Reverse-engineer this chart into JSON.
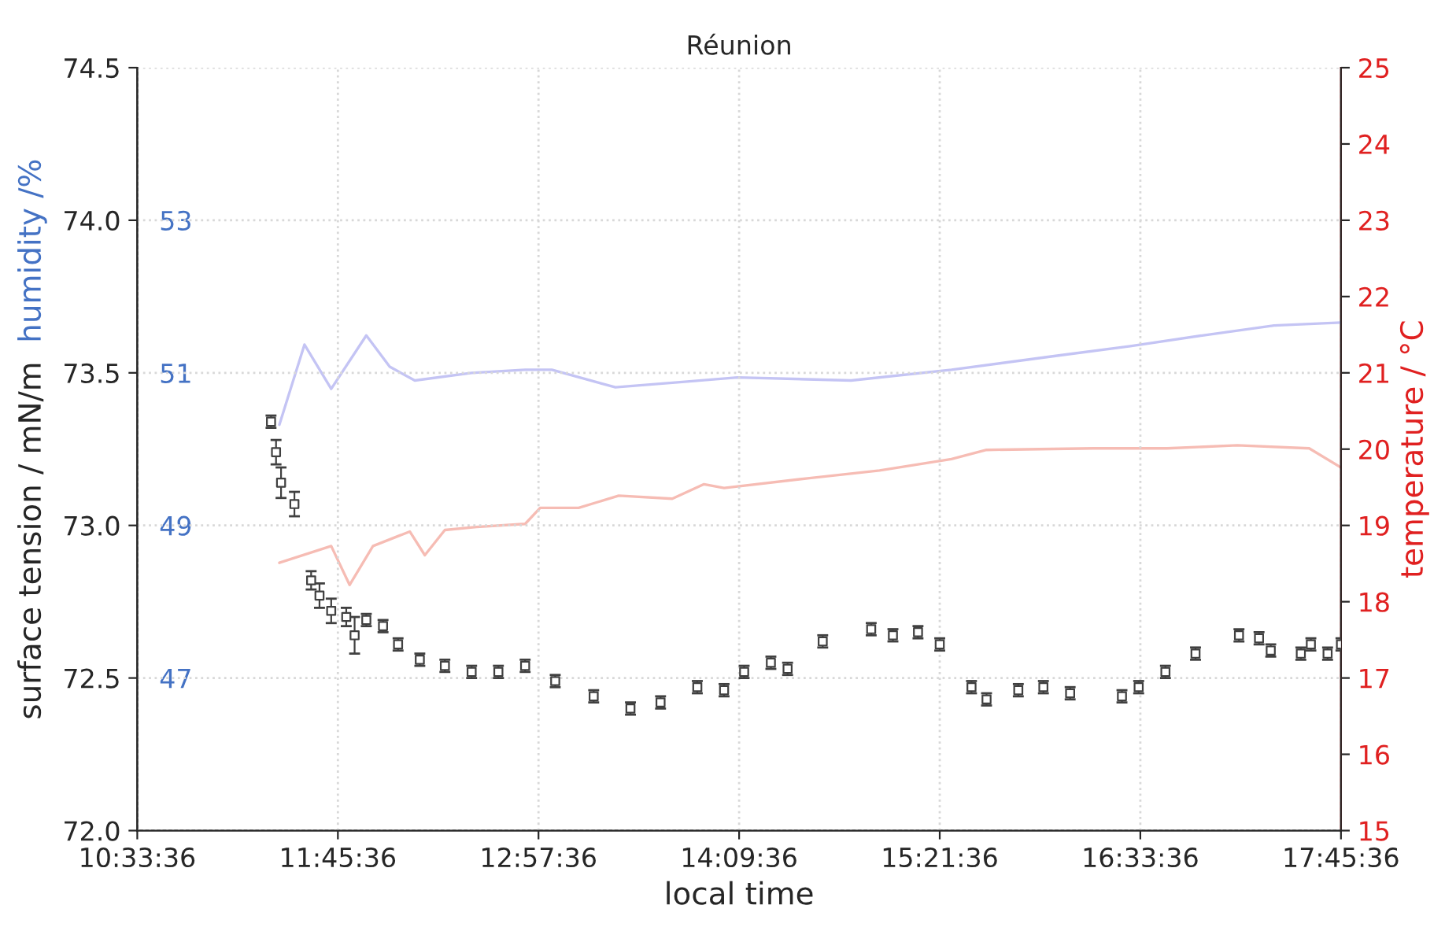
{
  "chart_data": {
    "type": "scatter",
    "title": "Réunion",
    "xlabel": "local time",
    "ylabel": "surface tension / mN/m",
    "y2label": "temperature / °C",
    "y3label": "humidity /%",
    "xlim": [
      10.56,
      17.76
    ],
    "xticks": [
      {
        "value": 10.56,
        "label": "10:33:36"
      },
      {
        "value": 11.76,
        "label": "11:45:36"
      },
      {
        "value": 12.96,
        "label": "12:57:36"
      },
      {
        "value": 14.16,
        "label": "14:09:36"
      },
      {
        "value": 15.36,
        "label": "15:21:36"
      },
      {
        "value": 16.56,
        "label": "16:33:36"
      },
      {
        "value": 17.76,
        "label": "17:45:36"
      }
    ],
    "ylim": [
      72.0,
      74.5
    ],
    "yticks": [
      {
        "value": 72.0,
        "label": "72.0"
      },
      {
        "value": 72.5,
        "label": "72.5"
      },
      {
        "value": 73.0,
        "label": "73.0"
      },
      {
        "value": 73.5,
        "label": "73.5"
      },
      {
        "value": 74.0,
        "label": "74.0"
      },
      {
        "value": 74.5,
        "label": "74.5"
      }
    ],
    "y2lim": [
      15,
      25
    ],
    "y2ticks": [
      15,
      16,
      17,
      18,
      19,
      20,
      21,
      22,
      23,
      24,
      25
    ],
    "y3lim": [
      45,
      55
    ],
    "y3ticks": [
      47,
      49,
      51,
      53
    ],
    "grid": true,
    "legend": false,
    "series": [
      {
        "type": "line",
        "axis": "y3",
        "color": "#c4c4f4",
        "x": [
          11.41,
          11.56,
          11.72,
          11.93,
          12.07,
          12.22,
          12.56,
          12.88,
          13.04,
          13.42,
          13.82,
          14.15,
          14.83,
          15.43,
          16.08,
          16.5,
          16.93,
          17.36,
          17.76
        ],
        "values": [
          50.32,
          51.37,
          50.79,
          51.49,
          51.08,
          50.9,
          51.0,
          51.04,
          51.04,
          50.81,
          50.88,
          50.94,
          50.9,
          51.04,
          51.23,
          51.35,
          51.49,
          51.62,
          51.66
        ]
      },
      {
        "type": "line",
        "axis": "y2",
        "color": "#f6bcb4",
        "x": [
          11.41,
          11.72,
          11.83,
          11.97,
          12.19,
          12.28,
          12.4,
          12.59,
          12.88,
          12.97,
          13.2,
          13.44,
          13.76,
          13.95,
          14.07,
          14.58,
          15.0,
          15.43,
          15.64,
          16.28,
          16.72,
          17.14,
          17.57,
          17.76
        ],
        "values": [
          18.51,
          18.73,
          18.22,
          18.73,
          18.92,
          18.61,
          18.94,
          18.98,
          19.02,
          19.23,
          19.23,
          19.39,
          19.35,
          19.54,
          19.49,
          19.62,
          19.72,
          19.87,
          19.99,
          20.01,
          20.01,
          20.05,
          20.01,
          19.76
        ]
      },
      {
        "marker": "square",
        "color": "#404040",
        "x": [
          11.36,
          11.39,
          11.42,
          11.5,
          11.6,
          11.65,
          11.72,
          11.81,
          11.86,
          11.93,
          12.03,
          12.12,
          12.25,
          12.4,
          12.56,
          12.72,
          12.88,
          13.06,
          13.29,
          13.51,
          13.69,
          13.91,
          14.07,
          14.19,
          14.35,
          14.45,
          14.66,
          14.95,
          15.08,
          15.23,
          15.36,
          15.55,
          15.64,
          15.83,
          15.98,
          16.14,
          16.45,
          16.55,
          16.71,
          16.89,
          17.15,
          17.27,
          17.34,
          17.52,
          17.58,
          17.68,
          17.76
        ],
        "values": [
          73.34,
          73.24,
          73.14,
          73.07,
          72.82,
          72.77,
          72.72,
          72.7,
          72.64,
          72.69,
          72.67,
          72.61,
          72.56,
          72.54,
          72.52,
          72.52,
          72.54,
          72.49,
          72.44,
          72.4,
          72.42,
          72.47,
          72.46,
          72.52,
          72.55,
          72.53,
          72.62,
          72.66,
          72.64,
          72.65,
          72.61,
          72.47,
          72.43,
          72.46,
          72.47,
          72.45,
          72.44,
          72.47,
          72.52,
          72.58,
          72.64,
          72.63,
          72.59,
          72.58,
          72.61,
          72.58,
          72.61
        ],
        "errors": [
          0.02,
          0.04,
          0.05,
          0.04,
          0.03,
          0.04,
          0.04,
          0.03,
          0.06,
          0.02,
          0.02,
          0.02,
          0.02,
          0.02,
          0.02,
          0.02,
          0.02,
          0.02,
          0.02,
          0.02,
          0.02,
          0.02,
          0.02,
          0.02,
          0.02,
          0.02,
          0.02,
          0.02,
          0.02,
          0.02,
          0.02,
          0.02,
          0.02,
          0.02,
          0.02,
          0.02,
          0.02,
          0.02,
          0.02,
          0.02,
          0.02,
          0.02,
          0.02,
          0.02,
          0.02,
          0.02,
          0.02
        ]
      }
    ]
  }
}
